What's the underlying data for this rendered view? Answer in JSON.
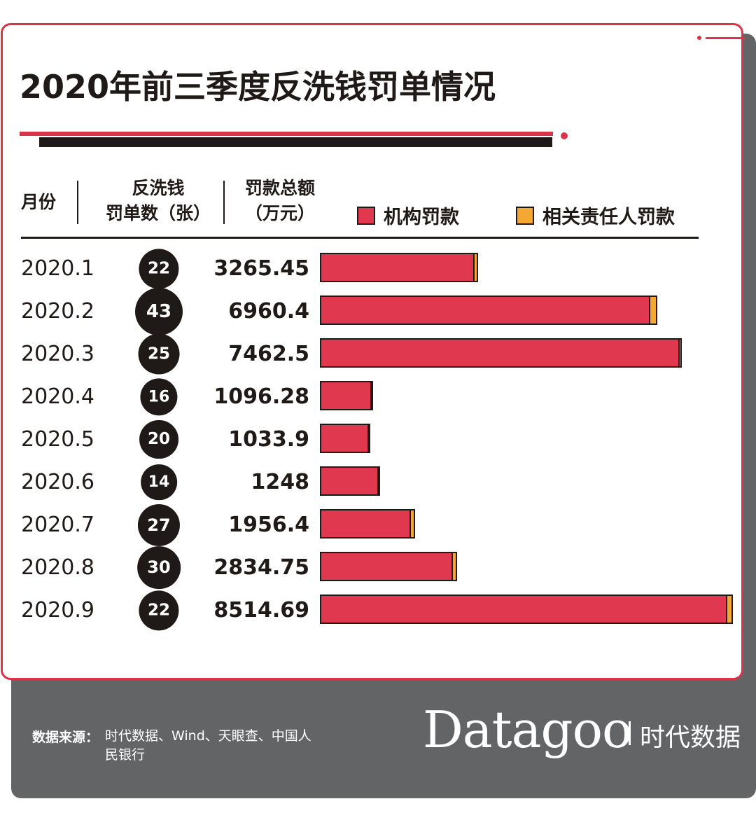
{
  "title": "2020年前三季度反洗钱罚单情况",
  "headers": {
    "month": "月份",
    "count_line1": "反洗钱",
    "count_line2": "罚单数（张）",
    "amount_line1": "罚款总额",
    "amount_line2": "（万元）"
  },
  "legend": {
    "institution": "机构罚款",
    "personnel": "相关责任人罚款"
  },
  "colors": {
    "accent": "#d9344a",
    "institution": "#e0394f",
    "personnel": "#f2a833",
    "dark": "#1f1a17",
    "footer": "#636466"
  },
  "chart_data": {
    "type": "bar",
    "orientation": "horizontal",
    "stacked": true,
    "categories": [
      "2020.1",
      "2020.2",
      "2020.3",
      "2020.4",
      "2020.5",
      "2020.6",
      "2020.7",
      "2020.8",
      "2020.9"
    ],
    "ticket_counts": [
      22,
      43,
      25,
      16,
      20,
      14,
      27,
      30,
      22
    ],
    "total_labels": [
      "3265.45",
      "6960.4",
      "7462.5",
      "1096.28",
      "1033.9",
      "1248",
      "1956.4",
      "2834.75",
      "8514.69"
    ],
    "totals": [
      3265.45,
      6960.4,
      7462.5,
      1096.28,
      1033.9,
      1248,
      1956.4,
      2834.75,
      8514.69
    ],
    "series": [
      {
        "name": "机构罚款",
        "values": [
          3135,
          6760,
          7360,
          1050,
          990,
          1230,
          1820,
          2690,
          8340
        ]
      },
      {
        "name": "相关责任人罚款",
        "values": [
          130.45,
          200.4,
          102.5,
          46.28,
          43.9,
          18,
          136.4,
          144.75,
          174.69
        ]
      }
    ],
    "xlim": [
      0,
      8600
    ]
  },
  "footer": {
    "source_label": "数据来源：",
    "source_text": "时代数据、Wind、天眼查、中国人民银行",
    "brand": "Datagoo",
    "brand_cn": "时代数据"
  }
}
